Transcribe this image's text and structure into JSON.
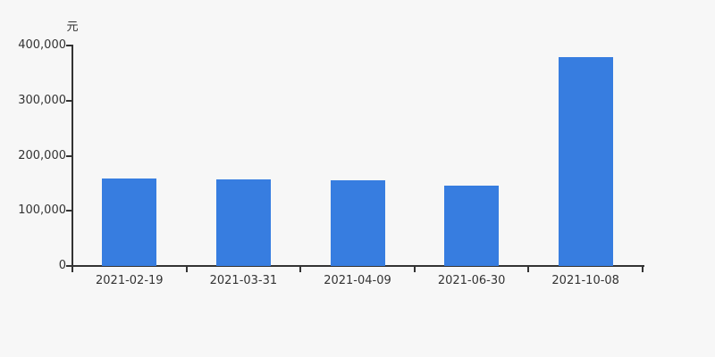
{
  "chart_data": {
    "type": "bar",
    "title": "",
    "unit_label": "元",
    "categories": [
      "2021-02-19",
      "2021-03-31",
      "2021-04-09",
      "2021-06-30",
      "2021-10-08"
    ],
    "values": [
      158000,
      156500,
      155500,
      145500,
      378500
    ],
    "xlabel": "",
    "ylabel": "元",
    "ylim": [
      0,
      400000
    ],
    "ytick_interval": 100000,
    "ytick_labels": [
      "0",
      "100,000",
      "200,000",
      "300,000",
      "400,000"
    ],
    "grid": false,
    "legend_position": "none",
    "colors": {
      "bar": "#377de0",
      "background": "#f7f7f7",
      "axis": "#333333",
      "text": "#333333"
    }
  }
}
